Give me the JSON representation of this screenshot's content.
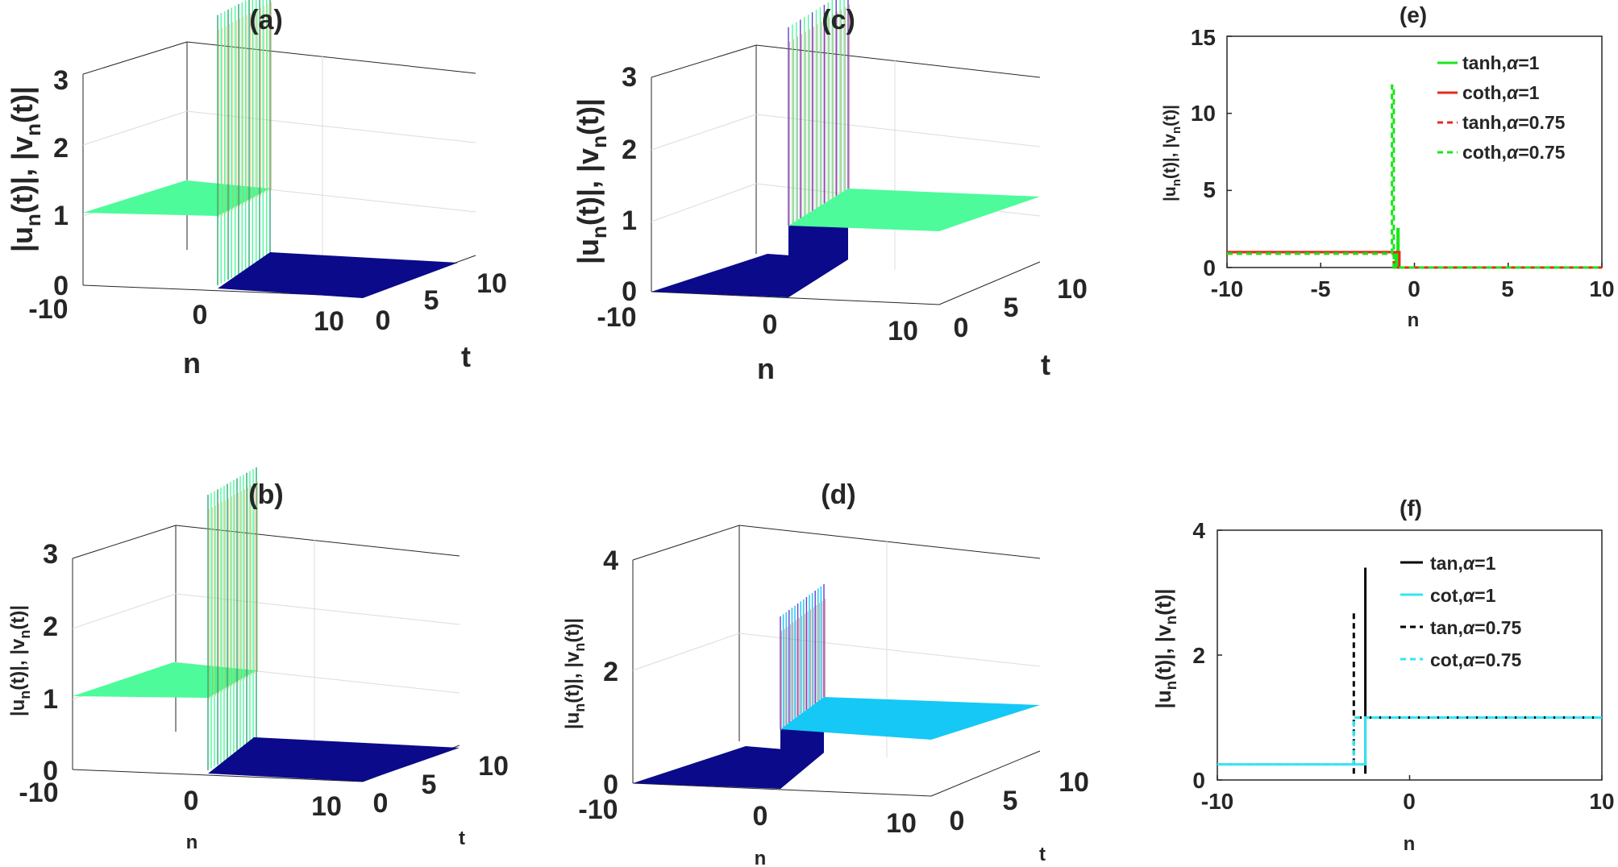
{
  "colors": {
    "mint": "#4dfb9a",
    "navy": "#0a0a8a",
    "cyan": "#16c8f5",
    "green": "#19e619",
    "red": "#e62a1a",
    "black": "#000000",
    "lightcyan": "#33e6f2"
  },
  "panels": {
    "a": {
      "title": "(a)",
      "xlabel": "n",
      "ylabel": "t",
      "zlabel": "|u",
      "zlabel_sub": "n",
      "zlabel_mid": "(t)|, |v",
      "zlabel_sub2": "n",
      "zlabel_end": "(t)|",
      "xticks": [
        "-10",
        "0",
        "10"
      ],
      "yticks": [
        "0",
        "5",
        "10"
      ],
      "zticks": [
        "0",
        "1",
        "2",
        "3"
      ]
    },
    "b": {
      "title": "(b)",
      "xlabel": "n",
      "ylabel": "t",
      "zlabel": "|u",
      "zlabel_sub": "n",
      "zlabel_mid": "(t)|, |v",
      "zlabel_sub2": "n",
      "zlabel_end": "(t)|",
      "xticks": [
        "-10",
        "0",
        "10"
      ],
      "yticks": [
        "0",
        "5",
        "10"
      ],
      "zticks": [
        "0",
        "1",
        "2",
        "3"
      ]
    },
    "c": {
      "title": "(c)",
      "xlabel": "n",
      "ylabel": "t",
      "zlabel": "|u",
      "zlabel_sub": "n",
      "zlabel_mid": "(t)|, |v",
      "zlabel_sub2": "n",
      "zlabel_end": "(t)|",
      "xticks": [
        "-10",
        "0",
        "10"
      ],
      "yticks": [
        "0",
        "5",
        "10"
      ],
      "zticks": [
        "0",
        "1",
        "2",
        "3"
      ]
    },
    "d": {
      "title": "(d)",
      "xlabel": "n",
      "ylabel": "t",
      "zlabel": "|u",
      "zlabel_sub": "n",
      "zlabel_mid": "(t)|, |v",
      "zlabel_sub2": "n",
      "zlabel_end": "(t)|",
      "xticks": [
        "-10",
        "0",
        "10"
      ],
      "yticks": [
        "0",
        "5",
        "10"
      ],
      "zticks": [
        "0",
        "2",
        "4"
      ]
    },
    "e": {
      "title": "(e)",
      "xlabel": "n",
      "ylabel": "|u",
      "ylabel_sub": "n",
      "ylabel_mid": "(t)|, |v",
      "ylabel_sub2": "n",
      "ylabel_end": "(t)|",
      "xticks": [
        "-10",
        "-5",
        "0",
        "5",
        "10"
      ],
      "yticks": [
        "0",
        "5",
        "10",
        "15"
      ]
    },
    "f": {
      "title": "(f)",
      "xlabel": "n",
      "ylabel": "|u",
      "ylabel_sub": "n",
      "ylabel_mid": "(t)|, |v",
      "ylabel_sub2": "n",
      "ylabel_end": "(t)|",
      "xticks": [
        "-10",
        "0",
        "10"
      ],
      "yticks": [
        "0",
        "2",
        "4"
      ]
    }
  },
  "legends": {
    "e": [
      {
        "prefix": "tanh,",
        "alpha": "α",
        "suffix": "=1"
      },
      {
        "prefix": "coth,",
        "alpha": "α",
        "suffix": "=1"
      },
      {
        "prefix": "tanh,",
        "alpha": "α",
        "suffix": "=0.75"
      },
      {
        "prefix": "coth,",
        "alpha": "α",
        "suffix": "=0.75"
      }
    ],
    "f": [
      {
        "prefix": "tan,",
        "alpha": "α",
        "suffix": "=1"
      },
      {
        "prefix": "cot,",
        "alpha": "α",
        "suffix": "=1"
      },
      {
        "prefix": "tan,",
        "alpha": "α",
        "suffix": "=0.75"
      },
      {
        "prefix": "cot,",
        "alpha": "α",
        "suffix": "=0.75"
      }
    ]
  },
  "chart_data": [
    {
      "panel": "a",
      "type": "surface",
      "title": "(a)",
      "xlabel": "n",
      "ylabel": "t",
      "zlabel": "|un(t)|, |vn(t)|",
      "xlim": [
        -10,
        10
      ],
      "ylim": [
        0,
        10
      ],
      "zlim": [
        0,
        3
      ],
      "grid": true,
      "series": [
        {
          "color": "mint",
          "n_range": [
            -10,
            0
          ],
          "level": 1,
          "spike_peak": 2.9
        },
        {
          "color": "navy",
          "n_range": [
            0,
            10
          ],
          "level": 0
        }
      ]
    },
    {
      "panel": "b",
      "type": "surface",
      "title": "(b)",
      "xlabel": "n",
      "ylabel": "t",
      "zlabel": "|un(t)|, |vn(t)|",
      "xlim": [
        -10,
        10
      ],
      "ylim": [
        0,
        10
      ],
      "zlim": [
        0,
        3
      ],
      "grid": true,
      "series": [
        {
          "color": "mint",
          "n_range": [
            -10,
            0
          ],
          "level": 1,
          "spike_peak": 2.8
        },
        {
          "color": "navy",
          "n_range": [
            0,
            10
          ],
          "level": 0
        }
      ]
    },
    {
      "panel": "c",
      "type": "surface",
      "title": "(c)",
      "xlabel": "n",
      "ylabel": "t",
      "zlabel": "|un(t)|, |vn(t)|",
      "xlim": [
        -10,
        10
      ],
      "ylim": [
        0,
        10
      ],
      "zlim": [
        0,
        3
      ],
      "grid": true,
      "series": [
        {
          "color": "navy",
          "n_range": [
            -10,
            0
          ],
          "level": 0
        },
        {
          "color": "mint",
          "n_range": [
            0,
            10
          ],
          "level": 1,
          "spike_peak": 2.8
        }
      ]
    },
    {
      "panel": "d",
      "type": "surface",
      "title": "(d)",
      "xlabel": "n",
      "ylabel": "t",
      "zlabel": "|un(t)|, |vn(t)|",
      "xlim": [
        -10,
        10
      ],
      "ylim": [
        0,
        10
      ],
      "zlim": [
        0,
        4
      ],
      "grid": true,
      "series": [
        {
          "color": "navy",
          "n_range": [
            -10,
            0
          ],
          "level": 0
        },
        {
          "color": "cyan",
          "n_range": [
            0,
            10
          ],
          "level": 1,
          "spike_peak": 4.0
        }
      ]
    },
    {
      "panel": "e",
      "type": "line",
      "title": "(e)",
      "xlabel": "n",
      "ylabel": "|un(t)|, |vn(t)|",
      "xlim": [
        -10,
        10
      ],
      "ylim": [
        0,
        15
      ],
      "legend": "top-right",
      "series": [
        {
          "name": "tanh,α=1",
          "color": "green",
          "dash": false,
          "x": [
            -10,
            -1,
            -1,
            -0.9,
            -0.9,
            -0.85,
            -0.85,
            10
          ],
          "y": [
            1,
            1,
            0,
            0,
            2.5,
            2.5,
            0,
            0
          ]
        },
        {
          "name": "coth,α=1",
          "color": "red",
          "dash": false,
          "x": [
            -10,
            -0.8,
            -0.8,
            10
          ],
          "y": [
            1,
            1,
            0,
            0
          ]
        },
        {
          "name": "tanh,α=0.75",
          "color": "red",
          "dash": true,
          "x": [
            -10,
            -1.1,
            -1.1,
            10
          ],
          "y": [
            0.9,
            0.9,
            0,
            0
          ]
        },
        {
          "name": "coth,α=0.75",
          "color": "green",
          "dash": true,
          "x": [
            -10,
            -1.2,
            -1.2,
            -1.1,
            -1.1,
            10
          ],
          "y": [
            0.9,
            0.9,
            11.8,
            11.8,
            0,
            0
          ]
        }
      ]
    },
    {
      "panel": "f",
      "type": "line",
      "title": "(f)",
      "xlabel": "n",
      "ylabel": "|un(t)|, |vn(t)|",
      "xlim": [
        -10,
        10
      ],
      "ylim": [
        0,
        4
      ],
      "legend": "top-right",
      "series": [
        {
          "name": "tan,α=1",
          "color": "black",
          "dash": false,
          "x": [
            -2.3,
            -2.3
          ],
          "y": [
            0.1,
            3.4
          ]
        },
        {
          "name": "cot,α=1",
          "color": "lightcyan",
          "dash": false,
          "x": [
            -10,
            -2.3,
            -2.3,
            10
          ],
          "y": [
            0.25,
            0.25,
            1,
            1
          ]
        },
        {
          "name": "tan,α=0.75",
          "color": "black",
          "dash": true,
          "x": [
            -2.9,
            -2.9,
            -2.9,
            -2.9,
            10
          ],
          "y": [
            0.1,
            2.7,
            1,
            1,
            1
          ]
        },
        {
          "name": "cot,α=0.75",
          "color": "lightcyan",
          "dash": true,
          "x": [
            -10,
            -2.9,
            -2.9,
            10
          ],
          "y": [
            0.25,
            0.25,
            1,
            1
          ]
        }
      ]
    }
  ]
}
